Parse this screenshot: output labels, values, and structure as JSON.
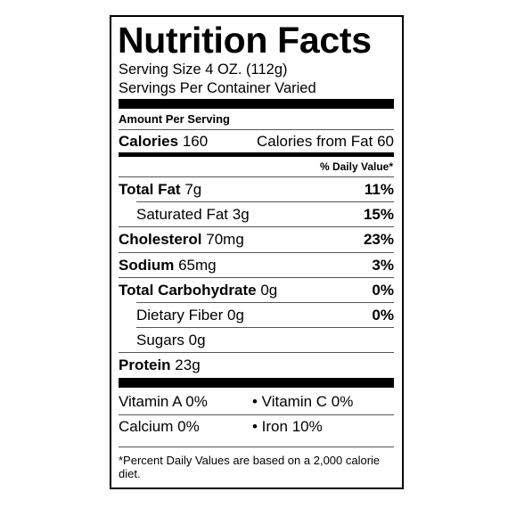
{
  "title": "Nutrition Facts",
  "serving_size": "Serving Size 4 OZ.  (112g)",
  "servings_per_container": "Servings Per Container Varied",
  "amount_per_serving": "Amount Per Serving",
  "calories": {
    "label": "Calories",
    "amount": "160",
    "from_fat": "Calories from Fat 60"
  },
  "daily_value_header": "% Daily Value*",
  "nutrients": [
    {
      "name": "Total Fat",
      "amount": "7g",
      "dv": "11%"
    },
    {
      "name": "Saturated Fat",
      "amount": "3g",
      "dv": "15%"
    },
    {
      "name": "Cholesterol",
      "amount": "70mg",
      "dv": "23%"
    },
    {
      "name": "Sodium",
      "amount": "65mg",
      "dv": "3%"
    },
    {
      "name": "Total Carbohydrate",
      "amount": "0g",
      "dv": "0%"
    },
    {
      "name": "Dietary Fiber",
      "amount": "0g",
      "dv": "0%"
    },
    {
      "name": "Sugars",
      "amount": "0g"
    },
    {
      "name": "Protein",
      "amount": "23g"
    }
  ],
  "vitamins": [
    [
      "Vitamin A 0%",
      "• Vitamin C 0%"
    ],
    [
      "Calcium 0%",
      "• Iron 10%"
    ]
  ],
  "footnote": "*Percent Daily Values are based on a 2,000 calorie diet."
}
